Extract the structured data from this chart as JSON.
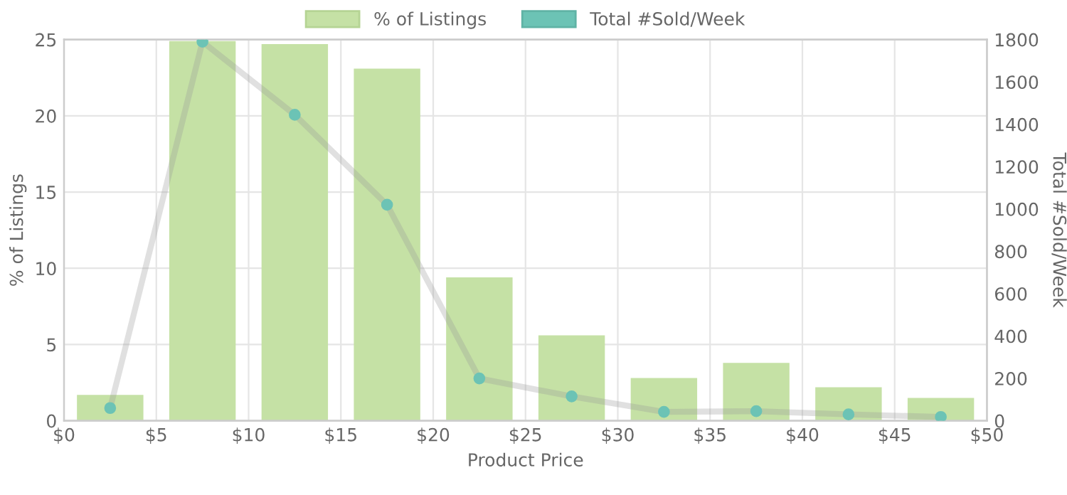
{
  "chart_data": {
    "type": "bar",
    "x": [
      2.5,
      7.5,
      12.5,
      17.5,
      22.5,
      27.5,
      32.5,
      37.5,
      42.5,
      47.5
    ],
    "series": [
      {
        "name": "% of Listings",
        "color": "#c5e1a5",
        "values": [
          1.7,
          24.9,
          24.7,
          23.1,
          9.4,
          5.6,
          2.8,
          3.8,
          2.2,
          1.5
        ]
      },
      {
        "name": "Total #Sold/Week",
        "type": "line",
        "axis": "y2",
        "color": "#6cc3b5",
        "values": [
          60,
          1790,
          1445,
          1020,
          200,
          115,
          42,
          45,
          30,
          18
        ]
      }
    ],
    "xlabel": "Product Price",
    "ylabel": "% of Listings",
    "y2label": "Total #Sold/Week",
    "xlim": [
      0,
      50
    ],
    "xticks": [
      {
        "value": 0,
        "label": "$0"
      },
      {
        "value": 5,
        "label": "$5"
      },
      {
        "value": 10,
        "label": "$10"
      },
      {
        "value": 15,
        "label": "$15"
      },
      {
        "value": 20,
        "label": "$20"
      },
      {
        "value": 25,
        "label": "$25"
      },
      {
        "value": 30,
        "label": "$30"
      },
      {
        "value": 35,
        "label": "$35"
      },
      {
        "value": 40,
        "label": "$40"
      },
      {
        "value": 45,
        "label": "$45"
      },
      {
        "value": 50,
        "label": "$50"
      }
    ],
    "ylim": [
      0,
      25
    ],
    "yticks": [
      0,
      5,
      10,
      15,
      20,
      25
    ],
    "y2lim": [
      0,
      1800
    ],
    "y2ticks": [
      0,
      200,
      400,
      600,
      800,
      1000,
      1200,
      1400,
      1600,
      1800
    ],
    "grid": true,
    "legend": "top",
    "marker": "circle"
  }
}
